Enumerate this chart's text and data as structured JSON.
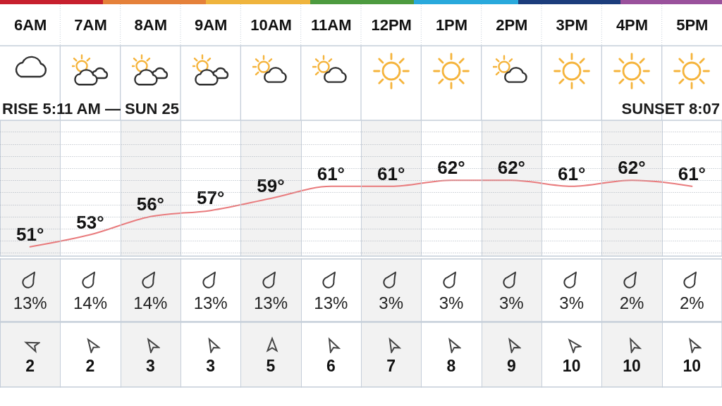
{
  "chart_data": [
    {
      "type": "line",
      "categories": [
        "6AM",
        "7AM",
        "8AM",
        "9AM",
        "10AM",
        "11AM",
        "12PM",
        "1PM",
        "2PM",
        "3PM",
        "4PM",
        "5PM"
      ],
      "series": [
        {
          "color": "#e97b7d",
          "values": [
            51,
            53,
            56,
            57,
            59,
            61,
            61,
            62,
            62,
            61,
            62,
            61
          ],
          "value_labels": [
            "51°",
            "53°",
            "56°",
            "57°",
            "59°",
            "61°",
            "61°",
            "62°",
            "62°",
            "61°",
            "62°",
            "61°"
          ]
        }
      ],
      "grid": true,
      "tick_labels": "x",
      "annotations": [
        "RISE 5:11 AM — SUN 25",
        "SUNSET 8:07"
      ]
    },
    {
      "type": "other",
      "values": [
        13,
        14,
        14,
        13,
        13,
        13,
        3,
        3,
        3,
        3,
        2,
        2
      ],
      "value_labels": [
        "13%",
        "14%",
        "14%",
        "13%",
        "13%",
        "13%",
        "3%",
        "3%",
        "3%",
        "3%",
        "2%",
        "2%"
      ]
    },
    {
      "type": "other",
      "values": [
        2,
        2,
        3,
        3,
        5,
        6,
        7,
        8,
        9,
        10,
        10,
        10
      ],
      "data_labels": true
    }
  ]
}
